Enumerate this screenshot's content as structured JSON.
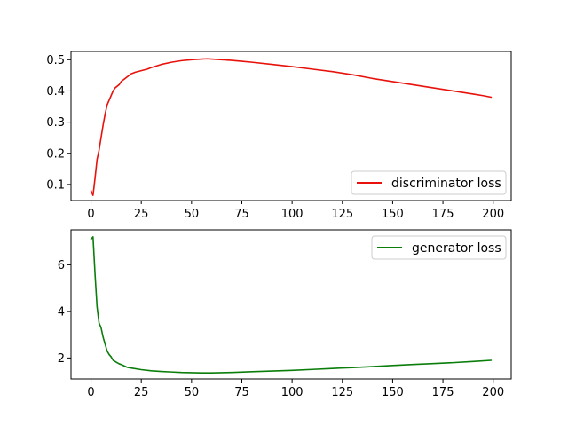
{
  "chart_data": [
    {
      "type": "line",
      "xlim": [
        -9.95,
        208.95
      ],
      "ylim": [
        0.0485,
        0.5265
      ],
      "xticks": [
        0,
        25,
        50,
        75,
        100,
        125,
        150,
        175,
        200
      ],
      "yticks": [
        0.1,
        0.2,
        0.3,
        0.4,
        0.5
      ],
      "ytick_labels": [
        "0.1",
        "0.2",
        "0.3",
        "0.4",
        "0.5"
      ],
      "legend": "lower right",
      "grid": false,
      "series": [
        {
          "name": "discriminator loss",
          "color": "#e8110b",
          "x": [
            0,
            1,
            2,
            3,
            4,
            5,
            6,
            7,
            8,
            9,
            10,
            11,
            12,
            13,
            14,
            15,
            16,
            17,
            18,
            19,
            20,
            22,
            25,
            28,
            30,
            35,
            40,
            45,
            50,
            55,
            58,
            60,
            65,
            70,
            75,
            80,
            90,
            100,
            110,
            120,
            130,
            140,
            150,
            160,
            170,
            180,
            190,
            195,
            199
          ],
          "y": [
            0.08,
            0.065,
            0.12,
            0.18,
            0.21,
            0.25,
            0.29,
            0.325,
            0.355,
            0.37,
            0.385,
            0.4,
            0.41,
            0.415,
            0.42,
            0.43,
            0.435,
            0.44,
            0.445,
            0.45,
            0.455,
            0.46,
            0.465,
            0.47,
            0.475,
            0.485,
            0.492,
            0.497,
            0.5,
            0.502,
            0.503,
            0.502,
            0.5,
            0.498,
            0.495,
            0.492,
            0.485,
            0.478,
            0.47,
            0.462,
            0.452,
            0.44,
            0.43,
            0.42,
            0.41,
            0.4,
            0.39,
            0.385,
            0.38
          ]
        }
      ]
    },
    {
      "type": "line",
      "xlim": [
        -9.95,
        208.95
      ],
      "ylim": [
        1.1,
        7.5
      ],
      "xticks": [
        0,
        25,
        50,
        75,
        100,
        125,
        150,
        175,
        200
      ],
      "yticks": [
        2,
        4,
        6
      ],
      "ytick_labels": [
        "2",
        "4",
        "6"
      ],
      "legend": "upper right",
      "grid": false,
      "series": [
        {
          "name": "generator loss",
          "color": "#0a7d0a",
          "x": [
            0,
            1,
            2,
            3,
            4,
            5,
            6,
            7,
            8,
            9,
            10,
            11,
            12,
            13,
            14,
            15,
            16,
            18,
            20,
            25,
            30,
            35,
            40,
            45,
            50,
            55,
            60,
            70,
            80,
            90,
            100,
            110,
            120,
            130,
            140,
            150,
            160,
            170,
            180,
            190,
            199
          ],
          "y": [
            7.1,
            7.2,
            5.6,
            4.2,
            3.5,
            3.3,
            2.9,
            2.6,
            2.3,
            2.15,
            2.05,
            1.9,
            1.85,
            1.8,
            1.75,
            1.72,
            1.68,
            1.6,
            1.57,
            1.5,
            1.45,
            1.42,
            1.4,
            1.38,
            1.37,
            1.36,
            1.36,
            1.38,
            1.41,
            1.44,
            1.47,
            1.51,
            1.55,
            1.59,
            1.63,
            1.68,
            1.72,
            1.76,
            1.8,
            1.85,
            1.9
          ]
        }
      ]
    }
  ]
}
